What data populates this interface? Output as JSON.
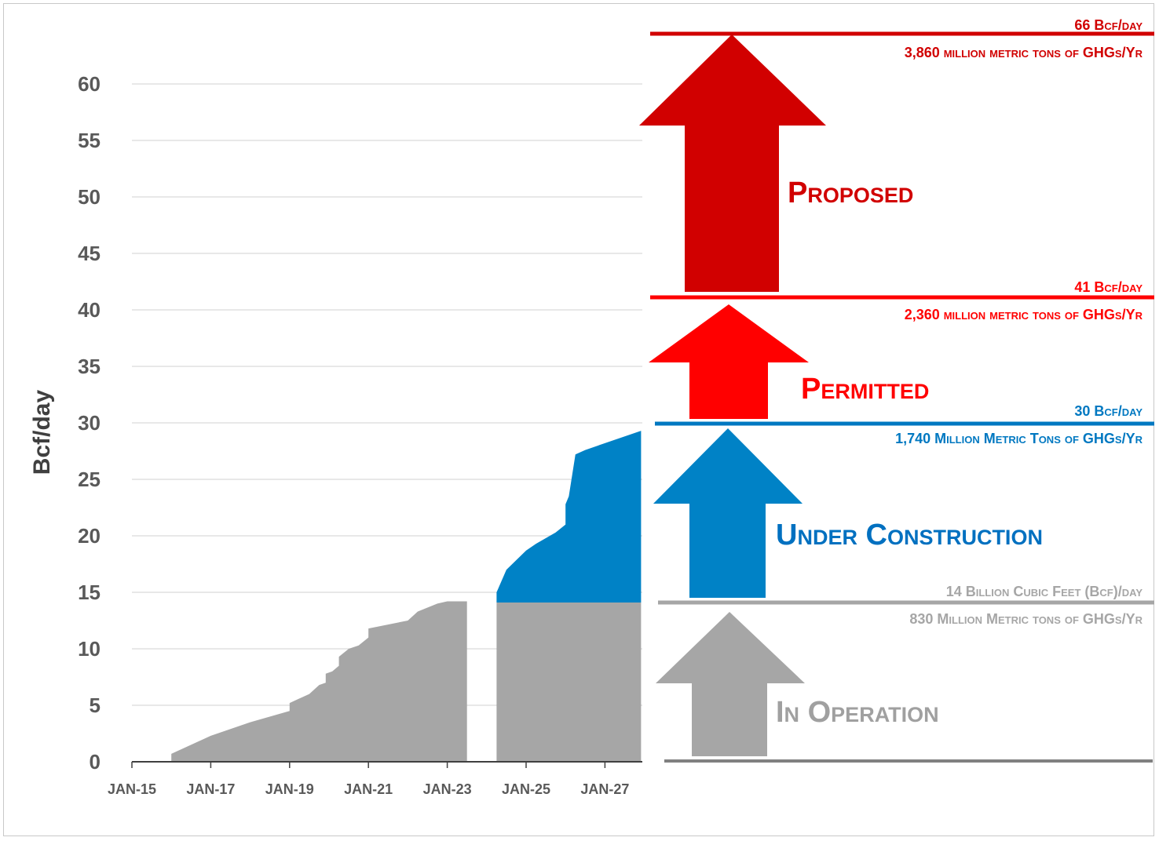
{
  "chart_data": {
    "type": "area",
    "title": "",
    "ylabel": "Bcf/day",
    "xlabel": "",
    "ylim": [
      0,
      65
    ],
    "yticks": [
      0,
      5,
      10,
      15,
      20,
      25,
      30,
      35,
      40,
      45,
      50,
      55,
      60
    ],
    "x_tick_labels": [
      "JAN-15",
      "JAN-17",
      "JAN-19",
      "JAN-21",
      "JAN-23",
      "JAN-25",
      "JAN-27"
    ],
    "grid": true,
    "series": [
      {
        "name": "In Operation",
        "color": "#a6a6a6",
        "segments": [
          [
            [
              "2016-01",
              0.7
            ],
            [
              "2016-07",
              1.5
            ],
            [
              "2017-01",
              2.3
            ],
            [
              "2018-01",
              3.5
            ],
            [
              "2019-01",
              4.5
            ],
            [
              "2019-01",
              5.2
            ],
            [
              "2019-07",
              6.0
            ],
            [
              "2019-10",
              6.8
            ],
            [
              "2019-12",
              7.0
            ],
            [
              "2019-12",
              7.8
            ],
            [
              "2020-02",
              8.0
            ],
            [
              "2020-04",
              8.5
            ],
            [
              "2020-04",
              9.3
            ],
            [
              "2020-07",
              10.0
            ],
            [
              "2020-10",
              10.3
            ],
            [
              "2021-01",
              11.0
            ],
            [
              "2021-01",
              11.8
            ],
            [
              "2022-01",
              12.5
            ],
            [
              "2022-04",
              13.3
            ],
            [
              "2022-10",
              14.0
            ],
            [
              "2023-01",
              14.2
            ],
            [
              "2023-07",
              14.2
            ]
          ],
          [
            [
              "2024-04",
              14.1
            ],
            [
              "2027-12",
              14.1
            ]
          ]
        ]
      },
      {
        "name": "Under Construction",
        "color": "#0082c6",
        "segments": [
          [
            [
              "2024-04",
              15.0
            ],
            [
              "2024-07",
              17.0
            ],
            [
              "2025-01",
              18.7
            ],
            [
              "2025-04",
              19.3
            ],
            [
              "2025-10",
              20.3
            ],
            [
              "2026-01",
              21.0
            ],
            [
              "2026-01",
              22.8
            ],
            [
              "2026-02",
              23.5
            ],
            [
              "2026-04",
              27.2
            ],
            [
              "2026-07",
              27.6
            ],
            [
              "2027-01",
              28.2
            ],
            [
              "2027-12",
              29.3
            ]
          ]
        ],
        "base": 14.1
      }
    ]
  },
  "levels": [
    {
      "name": "In Operation",
      "label": "In Operation",
      "top_line": "14 Billion Cubic Feet (Bcf)/day",
      "bottom_line": "830 Million Metric tons of GHGs/Yr",
      "color": "#a6a6a6",
      "value": 14.1
    },
    {
      "name": "Under Construction",
      "label": "Under Construction",
      "top_line": "30 Bcf/day",
      "bottom_line": "1,740 Million Metric Tons of GHGs/Yr",
      "color": "#0078c1",
      "value": 30
    },
    {
      "name": "Permitted",
      "label": "Permitted",
      "top_line": "41 Bcf/day",
      "bottom_line": "2,360 million metric tons of GHGs/Yr",
      "color": "#ff0000",
      "value": 41
    },
    {
      "name": "Proposed",
      "label": "Proposed",
      "top_line": "66 Bcf/day",
      "bottom_line": "3,860 million metric tons of GHGs/Yr",
      "color": "#d10000",
      "value": 66
    }
  ]
}
